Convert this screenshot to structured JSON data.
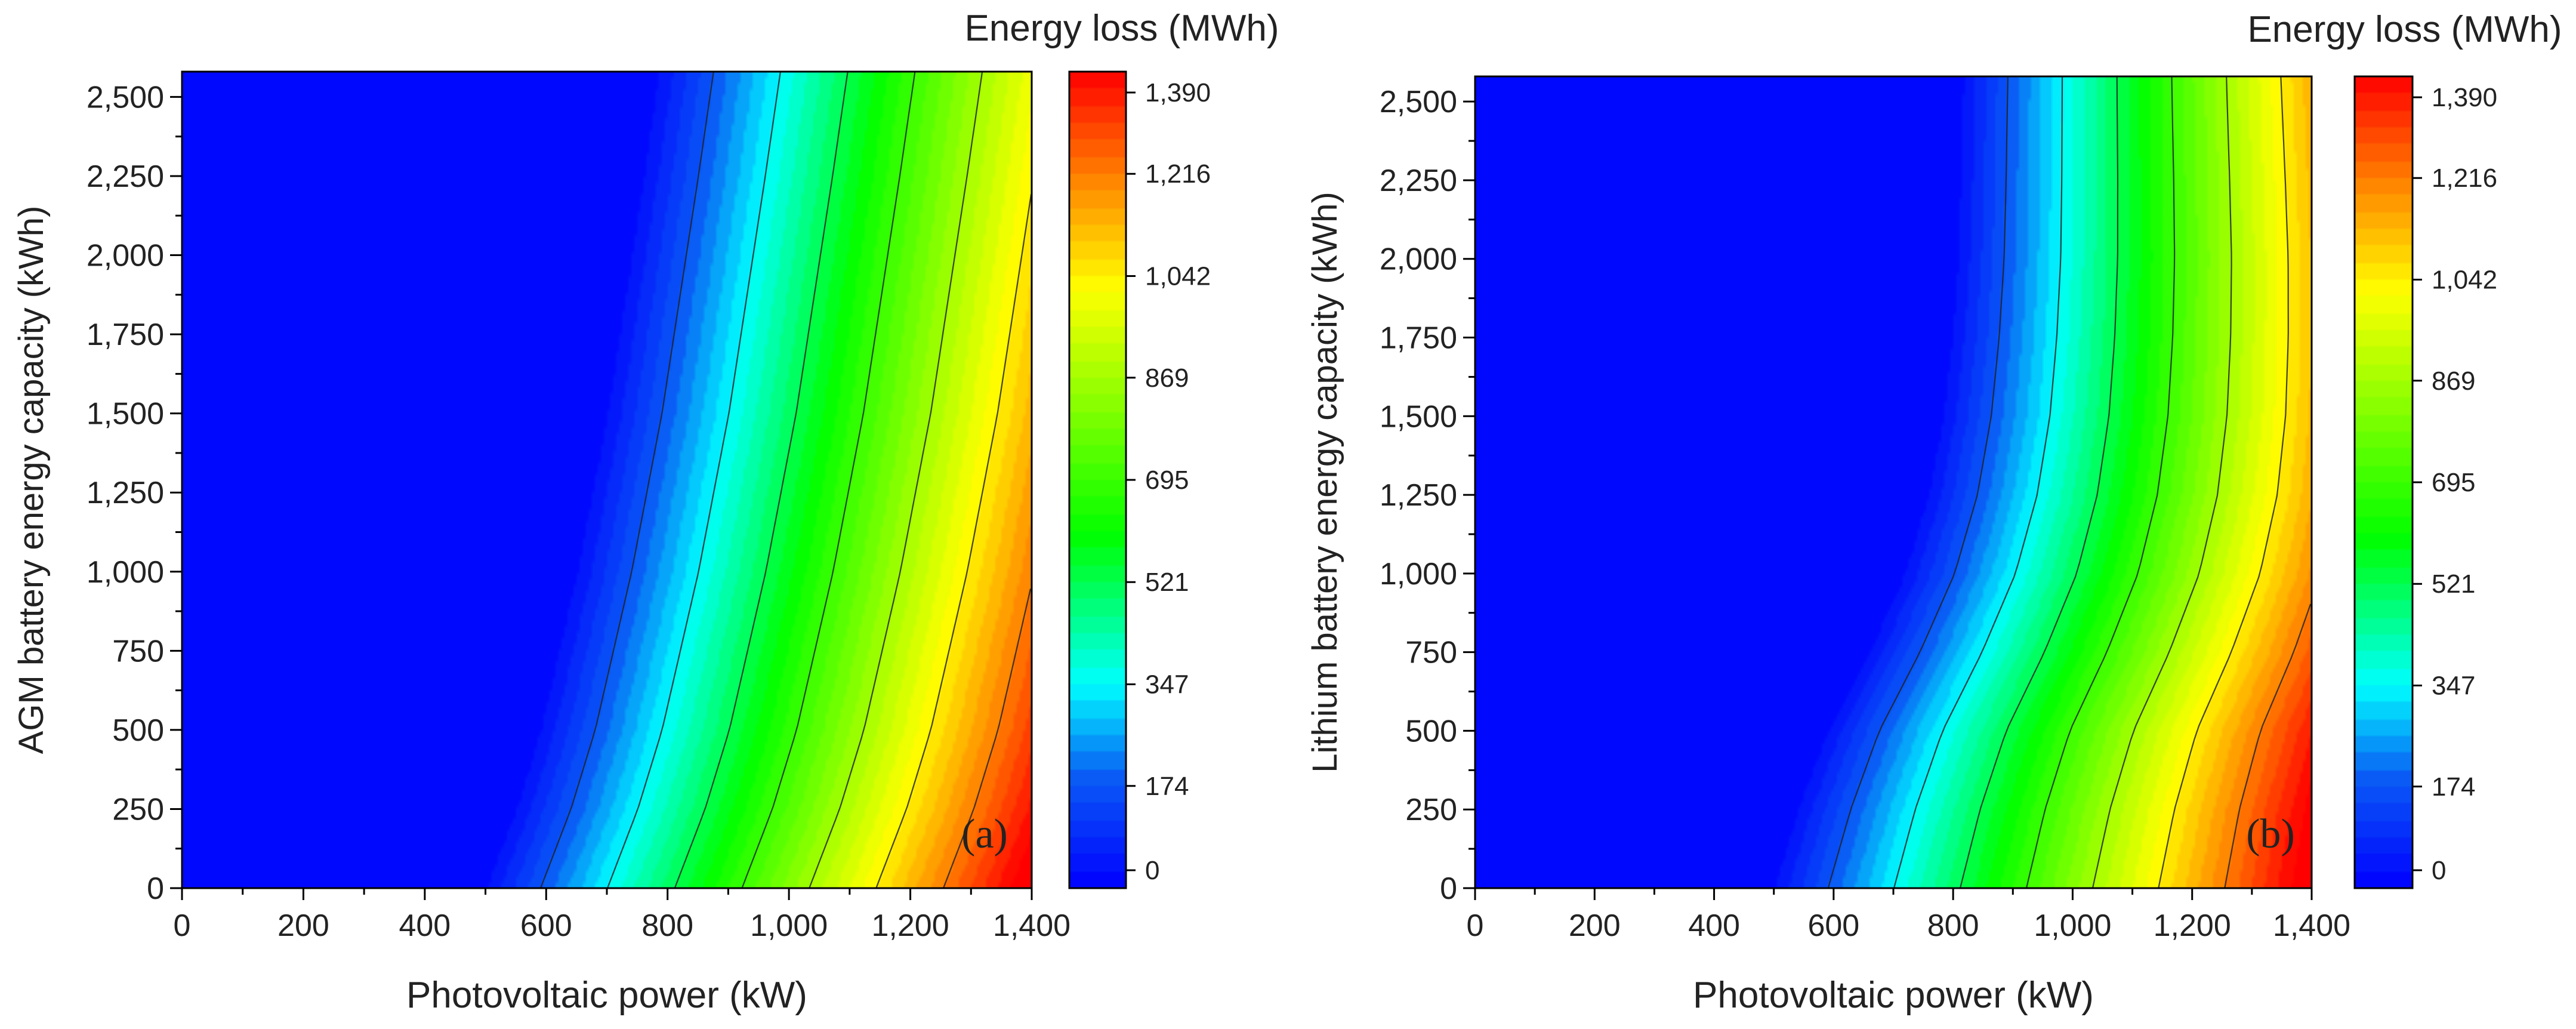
{
  "figure": {
    "panels": 2
  },
  "colormap": {
    "stops": [
      "#0000ff",
      "#0a5cf5",
      "#00ffff",
      "#00ff00",
      "#ffff00",
      "#ff8800",
      "#ff0000"
    ],
    "stop_values": [
      0,
      190,
      347,
      600,
      1020,
      1200,
      1390
    ]
  },
  "chart_data": [
    {
      "type": "heatmap",
      "panel_label": "(a)",
      "title": "Energy loss (MWh)",
      "xlabel": "Photovoltaic power (kW)",
      "ylabel": "AGM battery energy capacity (kWh)",
      "xlim": [
        0,
        1400
      ],
      "ylim": [
        0,
        2580
      ],
      "x_ticks": [
        0,
        200,
        400,
        600,
        800,
        1000,
        1200,
        1400
      ],
      "x_tick_labels": [
        "0",
        "200",
        "400",
        "600",
        "800",
        "1,000",
        "1,200",
        "1,400"
      ],
      "y_ticks": [
        0,
        250,
        500,
        750,
        1000,
        1250,
        1500,
        1750,
        2000,
        2250,
        2500
      ],
      "y_tick_labels": [
        "0",
        "250",
        "500",
        "750",
        "1,000",
        "1,250",
        "1,500",
        "1,750",
        "2,000",
        "2,250",
        "2,500"
      ],
      "colorbar": {
        "min": 0,
        "max": 1390,
        "ticks": [
          0,
          174,
          347,
          521,
          695,
          869,
          1042,
          1216,
          1390
        ],
        "tick_labels": [
          "0",
          "174",
          "347",
          "521",
          "695",
          "869",
          "1,042",
          "1,216",
          "1,390"
        ]
      },
      "contour_levels": [
        174,
        347,
        521,
        695,
        869,
        1042,
        1216
      ],
      "field": {
        "y_grid": [
          0,
          250,
          500,
          750,
          1000,
          1250,
          1500,
          1750,
          2000,
          2250,
          2580
        ],
        "x_zero": [
          480,
          530,
          570,
          600,
          630,
          655,
          680,
          700,
          720,
          740,
          765
        ],
        "slope_bottom": 1.57,
        "slope_top": 1.57
      }
    },
    {
      "type": "heatmap",
      "panel_label": "(b)",
      "title": "Energy loss (MWh)",
      "xlabel": "Photovoltaic power (kW)",
      "ylabel": "Lithium battery energy capacity (kWh)",
      "xlim": [
        0,
        1400
      ],
      "ylim": [
        0,
        2580
      ],
      "x_ticks": [
        0,
        200,
        400,
        600,
        800,
        1000,
        1200,
        1400
      ],
      "x_tick_labels": [
        "0",
        "200",
        "400",
        "600",
        "800",
        "1,000",
        "1,200",
        "1,400"
      ],
      "y_ticks": [
        0,
        250,
        500,
        750,
        1000,
        1250,
        1500,
        1750,
        2000,
        2250,
        2500
      ],
      "y_tick_labels": [
        "0",
        "250",
        "500",
        "750",
        "1,000",
        "1,250",
        "1,500",
        "1,750",
        "2,000",
        "2,250",
        "2,500"
      ],
      "colorbar": {
        "min": 0,
        "max": 1390,
        "ticks": [
          0,
          174,
          347,
          521,
          695,
          869,
          1042,
          1216,
          1390
        ],
        "tick_labels": [
          "0",
          "174",
          "347",
          "521",
          "695",
          "869",
          "1,042",
          "1,216",
          "1,390"
        ]
      },
      "contour_levels": [
        174,
        347,
        521,
        695,
        869,
        1042,
        1216
      ],
      "field": {
        "y_grid": [
          0,
          250,
          500,
          750,
          1000,
          1250,
          1500,
          1750,
          2000,
          2250,
          2580
        ],
        "x_zero": [
          480,
          520,
          570,
          640,
          700,
          740,
          765,
          780,
          790,
          795,
          800
        ],
        "slope_bottom": 1.57,
        "slope_top": 1.9
      }
    }
  ]
}
